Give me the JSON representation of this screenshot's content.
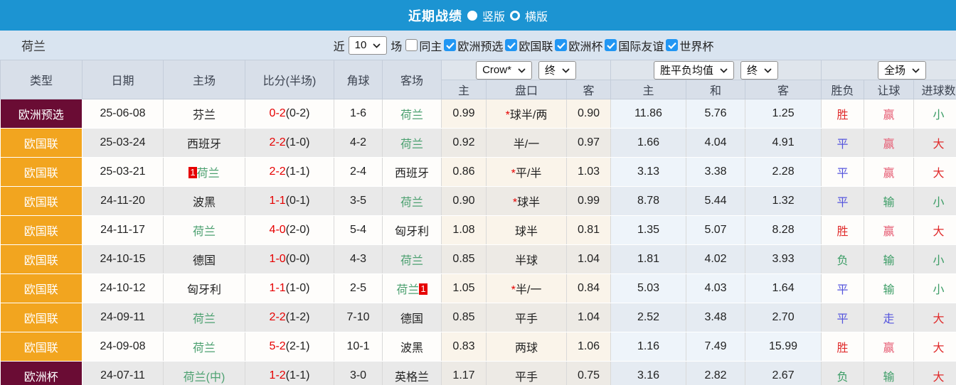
{
  "title_bar": {
    "title": "近期战绩",
    "layout_options": [
      {
        "label": "竖版",
        "selected": true
      },
      {
        "label": "横版",
        "selected": false
      }
    ]
  },
  "filter_bar": {
    "team": "荷兰",
    "near_label": "近",
    "count_select_value": "10",
    "games_label": "场",
    "checkbox_items": [
      {
        "label": "同主",
        "checked": false
      },
      {
        "label": "欧洲预选",
        "checked": true
      },
      {
        "label": "欧国联",
        "checked": true
      },
      {
        "label": "欧洲杯",
        "checked": true
      },
      {
        "label": "国际友谊",
        "checked": true
      },
      {
        "label": "世界杯",
        "checked": true
      }
    ]
  },
  "table": {
    "selects": {
      "bookmaker": "Crow*",
      "odds_time_1": "终",
      "avg_mode": "胜平负均值",
      "odds_time_2": "终",
      "scope": "全场"
    },
    "headers": {
      "type": "类型",
      "date": "日期",
      "home": "主场",
      "score": "比分(半场)",
      "corner": "角球",
      "away": "客场",
      "odds_home": "主",
      "handicap": "盘口",
      "odds_away": "客",
      "avg_home": "主",
      "avg_draw": "和",
      "avg_away": "客",
      "result": "胜负",
      "handicap_result": "让球",
      "goals": "进球数"
    },
    "colors": {
      "type_maroon": "#6a0c34",
      "type_orange": "#f2a51f",
      "win_red": "#e02b2b",
      "draw_blue": "#5555dd",
      "lose_green": "#3c9d66",
      "team_green": "#4da171",
      "score_red": "#e60000",
      "topbar_blue": "#1c94d2"
    },
    "rows": [
      {
        "type": "欧洲预选",
        "type_style": "maroon",
        "date": "25-06-08",
        "home": {
          "text": "芬兰",
          "green": false
        },
        "score": "0-2",
        "half": "(0-2)",
        "corner": "1-6",
        "away": {
          "text": "荷兰",
          "green": true
        },
        "odds_home": "0.99",
        "handicap": {
          "star": true,
          "text": "球半/两"
        },
        "odds_away": "0.90",
        "avg_home": "11.86",
        "avg_draw": "5.76",
        "avg_away": "1.25",
        "result": {
          "text": "胜",
          "cls": "red"
        },
        "handicap_result": {
          "text": "赢",
          "cls": "pink"
        },
        "goals": {
          "text": "小",
          "cls": "green"
        }
      },
      {
        "type": "欧国联",
        "type_style": "orange",
        "date": "25-03-24",
        "home": {
          "text": "西班牙",
          "green": false
        },
        "score": "2-2",
        "half": "(1-0)",
        "corner": "4-2",
        "away": {
          "text": "荷兰",
          "green": true
        },
        "odds_home": "0.92",
        "handicap": {
          "star": false,
          "text": "半/一"
        },
        "odds_away": "0.97",
        "avg_home": "1.66",
        "avg_draw": "4.04",
        "avg_away": "4.91",
        "result": {
          "text": "平",
          "cls": "blue"
        },
        "handicap_result": {
          "text": "赢",
          "cls": "pink"
        },
        "goals": {
          "text": "大",
          "cls": "red"
        }
      },
      {
        "type": "欧国联",
        "type_style": "orange",
        "date": "25-03-21",
        "home": {
          "text": "荷兰",
          "green": true,
          "badge": "1",
          "badge_pos": "before"
        },
        "score": "2-2",
        "half": "(1-1)",
        "corner": "2-4",
        "away": {
          "text": "西班牙",
          "green": false
        },
        "odds_home": "0.86",
        "handicap": {
          "star": true,
          "text": "平/半"
        },
        "odds_away": "1.03",
        "avg_home": "3.13",
        "avg_draw": "3.38",
        "avg_away": "2.28",
        "result": {
          "text": "平",
          "cls": "blue"
        },
        "handicap_result": {
          "text": "赢",
          "cls": "pink"
        },
        "goals": {
          "text": "大",
          "cls": "red"
        }
      },
      {
        "type": "欧国联",
        "type_style": "orange",
        "date": "24-11-20",
        "home": {
          "text": "波黑",
          "green": false
        },
        "score": "1-1",
        "half": "(0-1)",
        "corner": "3-5",
        "away": {
          "text": "荷兰",
          "green": true
        },
        "odds_home": "0.90",
        "handicap": {
          "star": true,
          "text": "球半"
        },
        "odds_away": "0.99",
        "avg_home": "8.78",
        "avg_draw": "5.44",
        "avg_away": "1.32",
        "result": {
          "text": "平",
          "cls": "blue"
        },
        "handicap_result": {
          "text": "输",
          "cls": "green"
        },
        "goals": {
          "text": "小",
          "cls": "green"
        }
      },
      {
        "type": "欧国联",
        "type_style": "orange",
        "date": "24-11-17",
        "home": {
          "text": "荷兰",
          "green": true
        },
        "score": "4-0",
        "half": "(2-0)",
        "corner": "5-4",
        "away": {
          "text": "匈牙利",
          "green": false
        },
        "odds_home": "1.08",
        "handicap": {
          "star": false,
          "text": "球半"
        },
        "odds_away": "0.81",
        "avg_home": "1.35",
        "avg_draw": "5.07",
        "avg_away": "8.28",
        "result": {
          "text": "胜",
          "cls": "red"
        },
        "handicap_result": {
          "text": "赢",
          "cls": "pink"
        },
        "goals": {
          "text": "大",
          "cls": "red"
        }
      },
      {
        "type": "欧国联",
        "type_style": "orange",
        "date": "24-10-15",
        "home": {
          "text": "德国",
          "green": false
        },
        "score": "1-0",
        "half": "(0-0)",
        "corner": "4-3",
        "away": {
          "text": "荷兰",
          "green": true
        },
        "odds_home": "0.85",
        "handicap": {
          "star": false,
          "text": "半球"
        },
        "odds_away": "1.04",
        "avg_home": "1.81",
        "avg_draw": "4.02",
        "avg_away": "3.93",
        "result": {
          "text": "负",
          "cls": "green"
        },
        "handicap_result": {
          "text": "输",
          "cls": "green"
        },
        "goals": {
          "text": "小",
          "cls": "green"
        }
      },
      {
        "type": "欧国联",
        "type_style": "orange",
        "date": "24-10-12",
        "home": {
          "text": "匈牙利",
          "green": false
        },
        "score": "1-1",
        "half": "(1-0)",
        "corner": "2-5",
        "away": {
          "text": "荷兰",
          "green": true,
          "badge": "1",
          "badge_pos": "after"
        },
        "odds_home": "1.05",
        "handicap": {
          "star": true,
          "text": "半/一"
        },
        "odds_away": "0.84",
        "avg_home": "5.03",
        "avg_draw": "4.03",
        "avg_away": "1.64",
        "result": {
          "text": "平",
          "cls": "blue"
        },
        "handicap_result": {
          "text": "输",
          "cls": "green"
        },
        "goals": {
          "text": "小",
          "cls": "green"
        }
      },
      {
        "type": "欧国联",
        "type_style": "orange",
        "date": "24-09-11",
        "home": {
          "text": "荷兰",
          "green": true
        },
        "score": "2-2",
        "half": "(1-2)",
        "corner": "7-10",
        "away": {
          "text": "德国",
          "green": false
        },
        "odds_home": "0.85",
        "handicap": {
          "star": false,
          "text": "平手"
        },
        "odds_away": "1.04",
        "avg_home": "2.52",
        "avg_draw": "3.48",
        "avg_away": "2.70",
        "result": {
          "text": "平",
          "cls": "blue"
        },
        "handicap_result": {
          "text": "走",
          "cls": "blue"
        },
        "goals": {
          "text": "大",
          "cls": "red"
        }
      },
      {
        "type": "欧国联",
        "type_style": "orange",
        "date": "24-09-08",
        "home": {
          "text": "荷兰",
          "green": true
        },
        "score": "5-2",
        "half": "(2-1)",
        "corner": "10-1",
        "away": {
          "text": "波黑",
          "green": false
        },
        "odds_home": "0.83",
        "handicap": {
          "star": false,
          "text": "两球"
        },
        "odds_away": "1.06",
        "avg_home": "1.16",
        "avg_draw": "7.49",
        "avg_away": "15.99",
        "result": {
          "text": "胜",
          "cls": "red"
        },
        "handicap_result": {
          "text": "赢",
          "cls": "pink"
        },
        "goals": {
          "text": "大",
          "cls": "red"
        }
      },
      {
        "type": "欧洲杯",
        "type_style": "maroon",
        "date": "24-07-11",
        "home": {
          "text": "荷兰(中)",
          "green": true
        },
        "score": "1-2",
        "half": "(1-1)",
        "corner": "3-0",
        "away": {
          "text": "英格兰",
          "green": false
        },
        "odds_home": "1.17",
        "handicap": {
          "star": false,
          "text": "平手"
        },
        "odds_away": "0.75",
        "avg_home": "3.16",
        "avg_draw": "2.82",
        "avg_away": "2.67",
        "result": {
          "text": "负",
          "cls": "green"
        },
        "handicap_result": {
          "text": "输",
          "cls": "green"
        },
        "goals": {
          "text": "大",
          "cls": "red"
        }
      }
    ]
  }
}
